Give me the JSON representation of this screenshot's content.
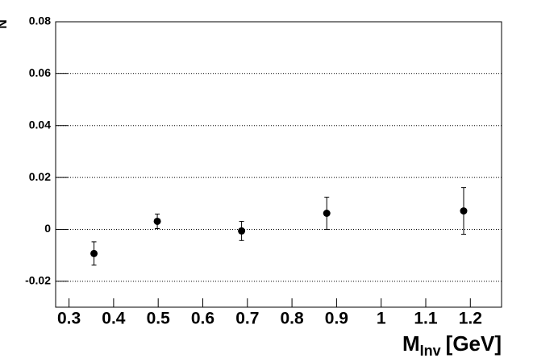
{
  "chart_data": {
    "type": "scatter",
    "y_label": "N",
    "x_label": {
      "main": "M",
      "sub": "Inv",
      "unit": "[GeV]"
    },
    "x": [
      0.356,
      0.498,
      0.687,
      0.878,
      1.185
    ],
    "values": [
      -0.0093,
      0.0031,
      -0.0006,
      0.0062,
      0.0071
    ],
    "errors": [
      0.0045,
      0.0028,
      0.0037,
      0.0062,
      0.009
    ],
    "color": "#000000",
    "xlim": [
      0.27,
      1.27
    ],
    "ylim": [
      -0.03,
      0.08
    ],
    "xticks": [
      0.3,
      0.4,
      0.5,
      0.6,
      0.7,
      0.8,
      0.9,
      1,
      1.1,
      1.2
    ],
    "yticks": [
      -0.02,
      0,
      0.02,
      0.04,
      0.06,
      0.08
    ],
    "grid": true
  }
}
